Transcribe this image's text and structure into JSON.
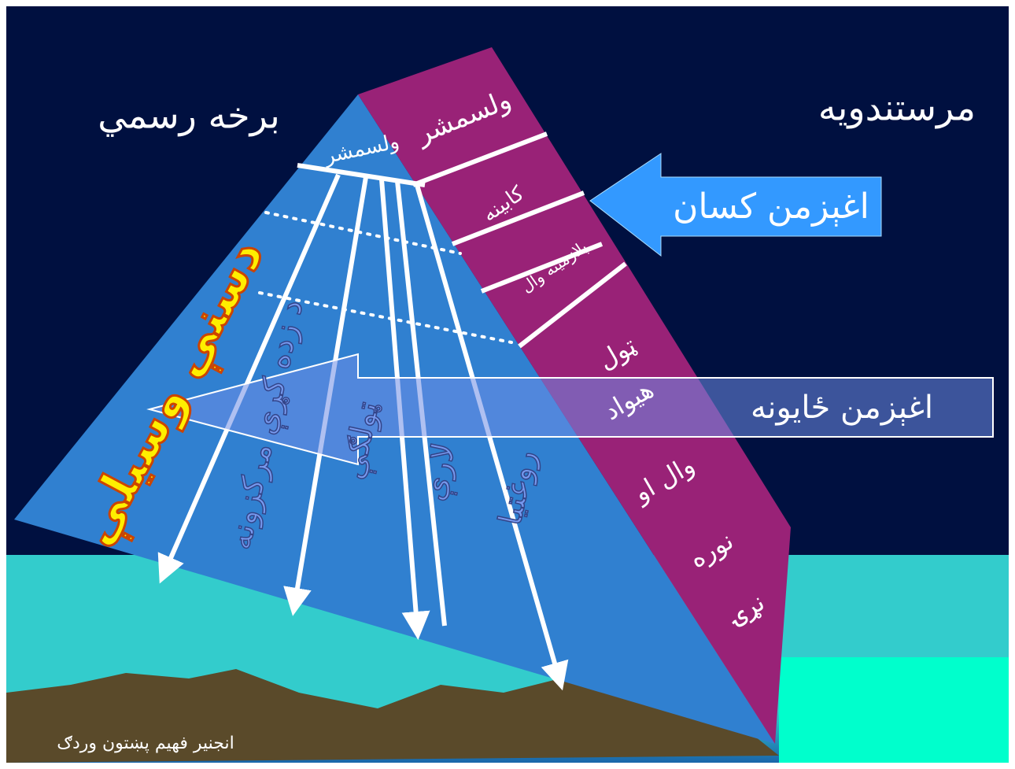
{
  "titles": {
    "right": "مرستندویه",
    "left": "برخه رسمي"
  },
  "band": {
    "president": "ولسمشر",
    "cabinet": "کابینه",
    "capital": "پلازمینه وال",
    "lines": [
      "ټول",
      "هیواد",
      "وال او",
      "نوره",
      "نړۍ"
    ]
  },
  "apex_label": "ولسمشر",
  "callouts": {
    "people": "اغېزمن کسان",
    "places": "اغېزمن ځایونه"
  },
  "side_label": "دسنې وسیلې",
  "columns": [
    "د زده کړې مرکزونه",
    "ټولګې",
    "لارې",
    "روغتیا"
  ],
  "footer": "انجنیر فهیم پښتون وردګ"
}
